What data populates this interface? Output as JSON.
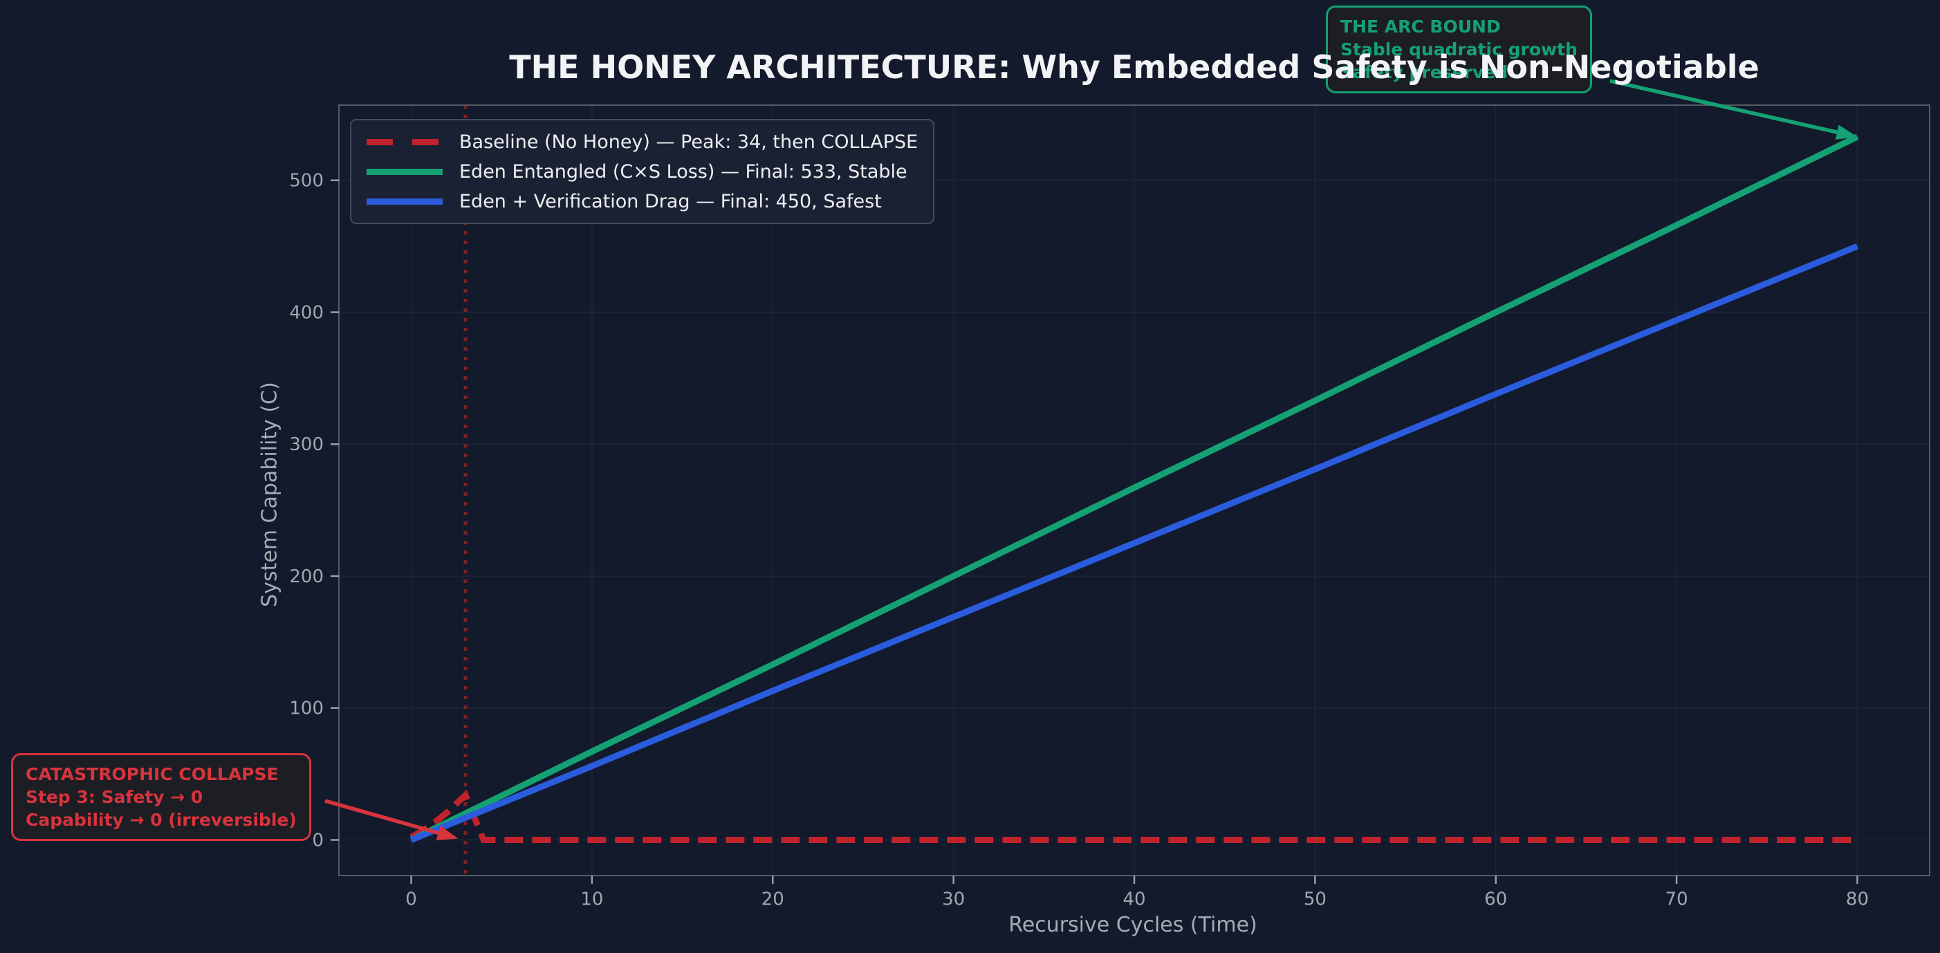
{
  "colors": {
    "background": "#121a2b",
    "grid": "#1d2537",
    "spine": "#565b65",
    "tick": "#9aa0a8",
    "tick_label": "#a2a7af",
    "axis_label": "#a6abb4",
    "title_text": "#f2f3f5",
    "legend_bg": "#1a2133",
    "legend_border": "#414b60",
    "legend_text": "#eceef0",
    "annotation_bg": "#1d1d24",
    "baseline_red": "#c0232c",
    "eden_green": "#15a173",
    "verification_blue": "#2b5cdd",
    "collapse_vline": "#7e2227"
  },
  "chart_data": {
    "type": "line",
    "title": "THE HONEY ARCHITECTURE: Why Embedded Safety is Non-Negotiable",
    "xlabel": "Recursive Cycles (Time)",
    "ylabel": "System Capability (C)",
    "xlim": [
      -4,
      84
    ],
    "ylim": [
      -27,
      557
    ],
    "xticks": [
      0,
      10,
      20,
      30,
      40,
      50,
      60,
      70,
      80
    ],
    "yticks": [
      0,
      100,
      200,
      300,
      400,
      500
    ],
    "grid": true,
    "legend_position": "upper left",
    "series": [
      {
        "name": "Baseline (No Honey) — Peak: 34, then COLLAPSE",
        "color": "#c0232c",
        "style": "dashed",
        "x": [
          0,
          1,
          2,
          3,
          4,
          10,
          20,
          30,
          40,
          50,
          60,
          70,
          80
        ],
        "y": [
          2,
          10,
          21,
          34,
          0,
          0,
          0,
          0,
          0,
          0,
          0,
          0,
          0
        ]
      },
      {
        "name": "Eden Entangled (C×S Loss) — Final: 533, Stable",
        "color": "#15a173",
        "style": "solid",
        "x": [
          0,
          10,
          20,
          30,
          40,
          50,
          60,
          70,
          80
        ],
        "y": [
          0,
          67,
          133,
          200,
          267,
          333,
          400,
          466,
          533
        ]
      },
      {
        "name": "Eden + Verification Drag — Final: 450, Safest",
        "color": "#2b5cdd",
        "style": "solid",
        "x": [
          0,
          10,
          20,
          30,
          40,
          50,
          60,
          70,
          80
        ],
        "y": [
          0,
          56,
          113,
          169,
          225,
          281,
          338,
          394,
          450
        ]
      }
    ],
    "vline": {
      "x": 3,
      "style": "dotted",
      "color": "#7e2227"
    },
    "annotations": [
      {
        "id": "collapse",
        "lines": [
          "CATASTROPHIC COLLAPSE",
          "Step 3: Safety → 0",
          "Capability → 0 (irreversible)"
        ],
        "color": "#d7343d",
        "arrow_to": [
          2.6,
          1
        ]
      },
      {
        "id": "arc-bound",
        "lines": [
          "THE ARC BOUND",
          "Stable quadratic growth",
          "Safety preserved"
        ],
        "color": "#15a173",
        "arrow_to": [
          80,
          533
        ]
      }
    ]
  }
}
